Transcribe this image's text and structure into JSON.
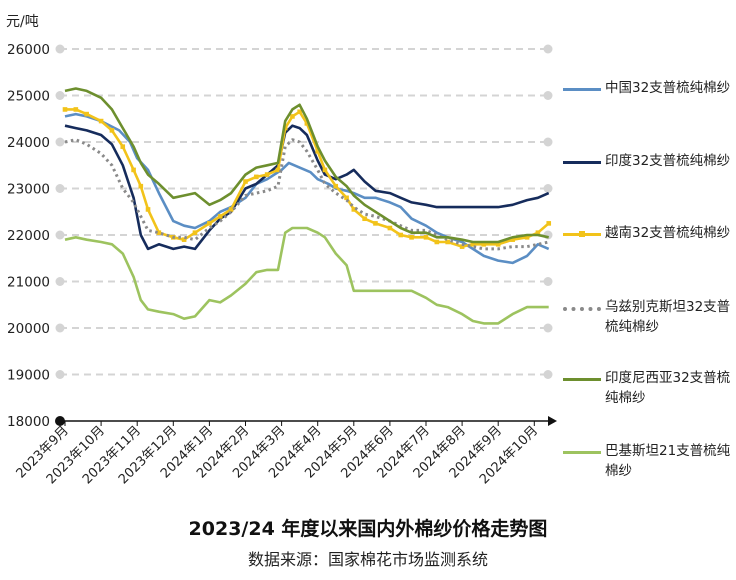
{
  "chart_data": {
    "type": "line",
    "title": "2023/24 年度以来国内外棉纱价格走势图",
    "source": "数据来源：国家棉花市场监测系统",
    "ylabel": "元/吨",
    "ylim": [
      18000,
      26000
    ],
    "yticks": [
      "18000",
      "19000",
      "20000",
      "21000",
      "22000",
      "23000",
      "24000",
      "25000",
      "26000"
    ],
    "grid": true,
    "legend_position": "right",
    "categories": [
      "2023年9月",
      "2023年10月",
      "2023年11月",
      "2023年12月",
      "2024年1月",
      "2024年2月",
      "2024年3月",
      "2024年4月",
      "2024年5月",
      "2024年6月",
      "2024年7月",
      "2024年8月",
      "2024年9月",
      "2024年10月"
    ],
    "x_note": "months since 2023-09 (0 = 2023年9月 tick)",
    "series": [
      {
        "name": "中国32支普梳纯棉纱",
        "color": "#5b8ec4",
        "style": "solid",
        "points": [
          [
            0,
            24550
          ],
          [
            0.3,
            24600
          ],
          [
            0.6,
            24550
          ],
          [
            1,
            24450
          ],
          [
            1.5,
            24250
          ],
          [
            1.8,
            24000
          ],
          [
            2,
            23650
          ],
          [
            2.3,
            23400
          ],
          [
            2.6,
            22900
          ],
          [
            3,
            22300
          ],
          [
            3.3,
            22200
          ],
          [
            3.6,
            22150
          ],
          [
            4,
            22300
          ],
          [
            4.3,
            22500
          ],
          [
            4.6,
            22600
          ],
          [
            5,
            22800
          ],
          [
            5.3,
            23100
          ],
          [
            5.6,
            23200
          ],
          [
            6,
            23400
          ],
          [
            6.2,
            23550
          ],
          [
            6.5,
            23450
          ],
          [
            6.8,
            23350
          ],
          [
            7,
            23200
          ],
          [
            7.3,
            23100
          ],
          [
            7.5,
            23000
          ],
          [
            7.8,
            22950
          ],
          [
            8,
            22900
          ],
          [
            8.3,
            22800
          ],
          [
            8.6,
            22800
          ],
          [
            9,
            22700
          ],
          [
            9.3,
            22600
          ],
          [
            9.6,
            22350
          ],
          [
            10,
            22200
          ],
          [
            10.3,
            22050
          ],
          [
            10.6,
            21950
          ],
          [
            11,
            21850
          ],
          [
            11.3,
            21700
          ],
          [
            11.6,
            21550
          ],
          [
            12,
            21450
          ],
          [
            12.4,
            21400
          ],
          [
            12.8,
            21550
          ],
          [
            13.1,
            21800
          ],
          [
            13.4,
            21700
          ]
        ]
      },
      {
        "name": "印度32支普梳纯棉纱",
        "color": "#162c5c",
        "style": "solid",
        "points": [
          [
            0,
            24350
          ],
          [
            0.3,
            24300
          ],
          [
            0.6,
            24250
          ],
          [
            1,
            24150
          ],
          [
            1.3,
            23950
          ],
          [
            1.6,
            23500
          ],
          [
            1.9,
            22800
          ],
          [
            2.1,
            22000
          ],
          [
            2.3,
            21700
          ],
          [
            2.6,
            21800
          ],
          [
            3,
            21700
          ],
          [
            3.3,
            21750
          ],
          [
            3.6,
            21700
          ],
          [
            4,
            22100
          ],
          [
            4.3,
            22350
          ],
          [
            4.6,
            22500
          ],
          [
            5,
            23000
          ],
          [
            5.3,
            23100
          ],
          [
            5.6,
            23300
          ],
          [
            5.9,
            23500
          ],
          [
            6.1,
            24200
          ],
          [
            6.3,
            24350
          ],
          [
            6.5,
            24300
          ],
          [
            6.7,
            24150
          ],
          [
            7,
            23600
          ],
          [
            7.2,
            23300
          ],
          [
            7.5,
            23200
          ],
          [
            7.8,
            23300
          ],
          [
            8,
            23400
          ],
          [
            8.3,
            23150
          ],
          [
            8.6,
            22950
          ],
          [
            9,
            22900
          ],
          [
            9.3,
            22800
          ],
          [
            9.6,
            22700
          ],
          [
            10,
            22650
          ],
          [
            10.3,
            22600
          ],
          [
            10.6,
            22600
          ],
          [
            11,
            22600
          ],
          [
            11.3,
            22600
          ],
          [
            11.6,
            22600
          ],
          [
            12,
            22600
          ],
          [
            12.4,
            22650
          ],
          [
            12.8,
            22750
          ],
          [
            13.1,
            22800
          ],
          [
            13.4,
            22900
          ]
        ]
      },
      {
        "name": "越南32支普梳纯棉纱",
        "color": "#f2c31a",
        "style": "markers",
        "points": [
          [
            0,
            24700
          ],
          [
            0.3,
            24700
          ],
          [
            0.6,
            24600
          ],
          [
            1,
            24450
          ],
          [
            1.3,
            24250
          ],
          [
            1.6,
            23900
          ],
          [
            1.9,
            23400
          ],
          [
            2.1,
            23050
          ],
          [
            2.3,
            22550
          ],
          [
            2.6,
            22050
          ],
          [
            3,
            21950
          ],
          [
            3.3,
            21900
          ],
          [
            3.6,
            22050
          ],
          [
            4,
            22250
          ],
          [
            4.3,
            22400
          ],
          [
            4.6,
            22550
          ],
          [
            5,
            23150
          ],
          [
            5.3,
            23250
          ],
          [
            5.6,
            23300
          ],
          [
            5.9,
            23400
          ],
          [
            6.1,
            24300
          ],
          [
            6.3,
            24550
          ],
          [
            6.5,
            24650
          ],
          [
            6.7,
            24400
          ],
          [
            7,
            23800
          ],
          [
            7.2,
            23400
          ],
          [
            7.5,
            23050
          ],
          [
            7.8,
            22800
          ],
          [
            8,
            22550
          ],
          [
            8.3,
            22350
          ],
          [
            8.6,
            22250
          ],
          [
            9,
            22150
          ],
          [
            9.3,
            22000
          ],
          [
            9.6,
            21950
          ],
          [
            10,
            21950
          ],
          [
            10.3,
            21850
          ],
          [
            10.6,
            21850
          ],
          [
            11,
            21750
          ],
          [
            11.3,
            21800
          ],
          [
            11.6,
            21800
          ],
          [
            12,
            21800
          ],
          [
            12.4,
            21900
          ],
          [
            12.8,
            21950
          ],
          [
            13.1,
            22050
          ],
          [
            13.4,
            22250
          ]
        ]
      },
      {
        "name": "乌兹别克斯坦32支普梳纯棉纱",
        "color": "#8a8a8a",
        "style": "dotted",
        "points": [
          [
            0,
            24000
          ],
          [
            0.3,
            24050
          ],
          [
            0.6,
            23950
          ],
          [
            1,
            23750
          ],
          [
            1.3,
            23500
          ],
          [
            1.6,
            23000
          ],
          [
            1.9,
            22700
          ],
          [
            2.1,
            22400
          ],
          [
            2.3,
            22100
          ],
          [
            2.6,
            22050
          ],
          [
            3,
            21950
          ],
          [
            3.3,
            21950
          ],
          [
            3.6,
            21900
          ],
          [
            4,
            22150
          ],
          [
            4.3,
            22300
          ],
          [
            4.6,
            22500
          ],
          [
            5,
            22850
          ],
          [
            5.3,
            22900
          ],
          [
            5.6,
            22950
          ],
          [
            5.9,
            23050
          ],
          [
            6.1,
            23900
          ],
          [
            6.3,
            24050
          ],
          [
            6.5,
            24000
          ],
          [
            6.7,
            23800
          ],
          [
            7,
            23400
          ],
          [
            7.2,
            23100
          ],
          [
            7.5,
            22900
          ],
          [
            7.8,
            22750
          ],
          [
            8,
            22600
          ],
          [
            8.3,
            22450
          ],
          [
            8.6,
            22400
          ],
          [
            9,
            22300
          ],
          [
            9.3,
            22200
          ],
          [
            9.6,
            22100
          ],
          [
            10,
            22100
          ],
          [
            10.3,
            22000
          ],
          [
            10.6,
            21900
          ],
          [
            11,
            21800
          ],
          [
            11.3,
            21750
          ],
          [
            11.6,
            21700
          ],
          [
            12,
            21700
          ],
          [
            12.4,
            21750
          ],
          [
            12.8,
            21750
          ],
          [
            13.1,
            21800
          ],
          [
            13.4,
            21850
          ]
        ]
      },
      {
        "name": "印度尼西亚32支普梳纯棉纱",
        "color": "#6d8f2e",
        "style": "solid",
        "points": [
          [
            0,
            25100
          ],
          [
            0.3,
            25150
          ],
          [
            0.6,
            25100
          ],
          [
            1,
            24950
          ],
          [
            1.3,
            24700
          ],
          [
            1.6,
            24300
          ],
          [
            1.9,
            23900
          ],
          [
            2.1,
            23550
          ],
          [
            2.3,
            23300
          ],
          [
            2.6,
            23100
          ],
          [
            3,
            22800
          ],
          [
            3.3,
            22850
          ],
          [
            3.6,
            22900
          ],
          [
            4,
            22650
          ],
          [
            4.3,
            22750
          ],
          [
            4.6,
            22900
          ],
          [
            5,
            23300
          ],
          [
            5.3,
            23450
          ],
          [
            5.6,
            23500
          ],
          [
            5.9,
            23550
          ],
          [
            6.1,
            24450
          ],
          [
            6.3,
            24700
          ],
          [
            6.5,
            24800
          ],
          [
            6.7,
            24500
          ],
          [
            7,
            23900
          ],
          [
            7.2,
            23600
          ],
          [
            7.5,
            23250
          ],
          [
            7.8,
            23050
          ],
          [
            8,
            22850
          ],
          [
            8.3,
            22650
          ],
          [
            8.6,
            22500
          ],
          [
            9,
            22300
          ],
          [
            9.3,
            22150
          ],
          [
            9.6,
            22050
          ],
          [
            10,
            22050
          ],
          [
            10.3,
            21950
          ],
          [
            10.6,
            21950
          ],
          [
            11,
            21900
          ],
          [
            11.3,
            21850
          ],
          [
            11.6,
            21850
          ],
          [
            12,
            21850
          ],
          [
            12.4,
            21950
          ],
          [
            12.8,
            22000
          ],
          [
            13.1,
            22000
          ],
          [
            13.4,
            21950
          ]
        ]
      },
      {
        "name": "巴基斯坦21支普梳纯棉纱",
        "color": "#9dc35f",
        "style": "solid",
        "points": [
          [
            0,
            21900
          ],
          [
            0.3,
            21950
          ],
          [
            0.6,
            21900
          ],
          [
            1,
            21850
          ],
          [
            1.3,
            21800
          ],
          [
            1.6,
            21600
          ],
          [
            1.9,
            21100
          ],
          [
            2.1,
            20600
          ],
          [
            2.3,
            20400
          ],
          [
            2.6,
            20350
          ],
          [
            3,
            20300
          ],
          [
            3.3,
            20200
          ],
          [
            3.6,
            20250
          ],
          [
            4,
            20600
          ],
          [
            4.3,
            20550
          ],
          [
            4.6,
            20700
          ],
          [
            5,
            20950
          ],
          [
            5.3,
            21200
          ],
          [
            5.6,
            21250
          ],
          [
            5.9,
            21250
          ],
          [
            6.1,
            22050
          ],
          [
            6.3,
            22150
          ],
          [
            6.5,
            22150
          ],
          [
            6.7,
            22150
          ],
          [
            7,
            22050
          ],
          [
            7.2,
            21950
          ],
          [
            7.5,
            21600
          ],
          [
            7.8,
            21350
          ],
          [
            8,
            20800
          ],
          [
            8.3,
            20800
          ],
          [
            8.6,
            20800
          ],
          [
            9,
            20800
          ],
          [
            9.3,
            20800
          ],
          [
            9.6,
            20800
          ],
          [
            10,
            20650
          ],
          [
            10.3,
            20500
          ],
          [
            10.6,
            20450
          ],
          [
            11,
            20300
          ],
          [
            11.3,
            20150
          ],
          [
            11.6,
            20100
          ],
          [
            12,
            20100
          ],
          [
            12.4,
            20300
          ],
          [
            12.8,
            20450
          ],
          [
            13.1,
            20450
          ],
          [
            13.4,
            20450
          ]
        ]
      }
    ]
  }
}
